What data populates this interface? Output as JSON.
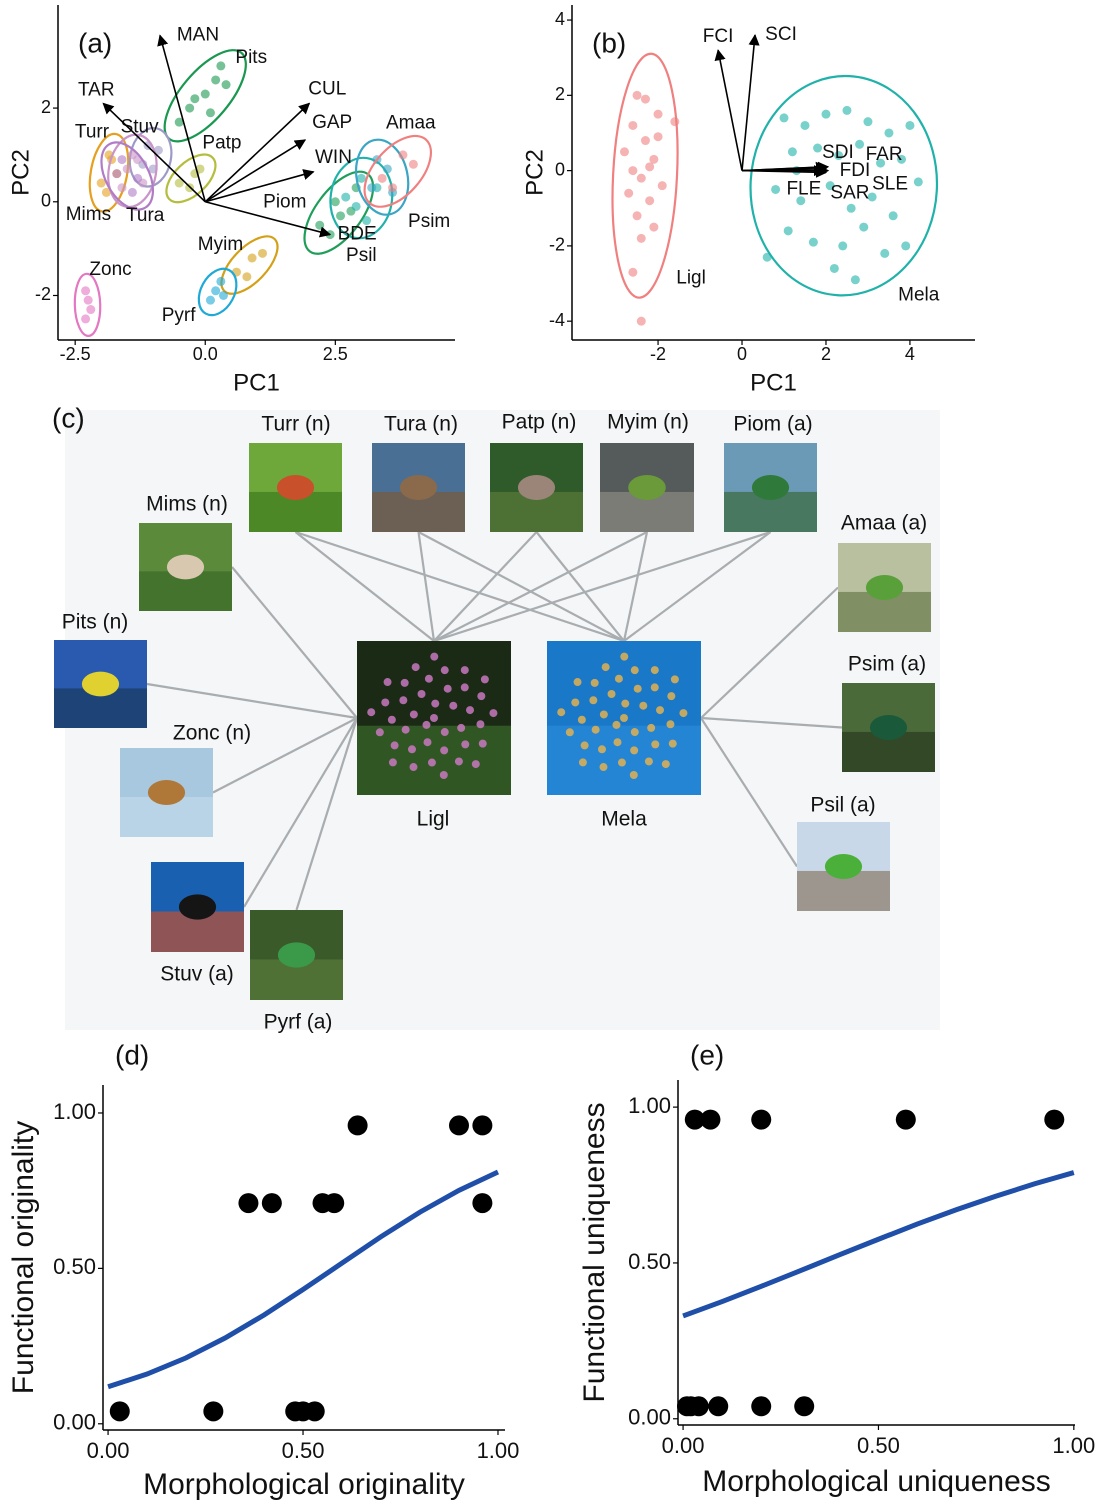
{
  "chart_data": [
    {
      "type": "biplot",
      "panel_label": "(a)",
      "xlabel": "PC1",
      "ylabel": "PC2",
      "xlim": [
        -2.83,
        4.8
      ],
      "ylim": [
        -2.95,
        4.2
      ],
      "xticks": [
        -2.5,
        {
          "value": 0,
          "label": "0.0"
        },
        2.5
      ],
      "yticks": [
        -2,
        0,
        2
      ],
      "groups": [
        {
          "name": "Pits",
          "color": "#1a9850",
          "x": [
            -0.5,
            -0.3,
            0,
            0.2,
            0.4,
            0.1,
            -0.2,
            0.3
          ],
          "y": [
            1.7,
            2.0,
            2.3,
            2.6,
            2.5,
            1.9,
            2.2,
            2.9
          ]
        },
        {
          "name": "Turr",
          "color": "#e6a020",
          "x": [
            -2.0,
            -1.8,
            -1.7,
            -1.9,
            -1.85
          ],
          "y": [
            0.4,
            0.9,
            0.6,
            0.2,
            1.0
          ]
        },
        {
          "name": "Stuv",
          "color": "#9e9ac8",
          "x": [
            -1.2,
            -0.9,
            -1.0,
            -1.1
          ],
          "y": [
            0.8,
            1.1,
            0.7,
            1.2
          ]
        },
        {
          "name": "Mims",
          "color": "#c994c7",
          "x": [
            -1.6,
            -1.3,
            -1.5,
            -1.2,
            -1.4
          ],
          "y": [
            0.3,
            0.9,
            0.7,
            0.4,
            1.0
          ]
        },
        {
          "name": "Tura",
          "color": "#b07cc6",
          "x": [
            -1.7,
            -1.4,
            -1.6,
            -1.3
          ],
          "y": [
            0.6,
            0.2,
            0.9,
            0.5
          ]
        },
        {
          "name": "Patp",
          "color": "#b5bd3d",
          "x": [
            -0.5,
            -0.2,
            -0.3,
            -0.1
          ],
          "y": [
            0.4,
            0.6,
            0.3,
            0.7
          ]
        },
        {
          "name": "Piom",
          "color": "#1f9e5a",
          "x": [
            2.2,
            2.5,
            2.8,
            2.4,
            2.9,
            2.6
          ],
          "y": [
            -0.5,
            0.0,
            -0.2,
            -0.7,
            0.3,
            -0.3
          ]
        },
        {
          "name": "Psil",
          "color": "#20b2aa",
          "x": [
            2.7,
            3.1,
            3.3,
            2.9,
            3.0
          ],
          "y": [
            0.1,
            -0.4,
            0.3,
            -0.1,
            0.5
          ]
        },
        {
          "name": "Psim",
          "color": "#3aa5c5",
          "x": [
            3.2,
            3.5,
            3.6,
            3.3
          ],
          "y": [
            0.3,
            0.7,
            0.2,
            0.9
          ]
        },
        {
          "name": "Amaa",
          "color": "#f08080",
          "x": [
            3.4,
            3.8,
            4.0,
            3.6
          ],
          "y": [
            0.5,
            1.0,
            0.8,
            0.3
          ]
        },
        {
          "name": "Myim",
          "color": "#d4a017",
          "x": [
            0.6,
            0.9,
            1.1,
            0.8
          ],
          "y": [
            -1.5,
            -1.2,
            -1.1,
            -1.6
          ]
        },
        {
          "name": "Pyrf",
          "color": "#1fa9d6",
          "x": [
            0.1,
            0.3,
            0.2,
            0.35
          ],
          "y": [
            -2.1,
            -1.7,
            -1.9,
            -2.0
          ]
        },
        {
          "name": "Zonc",
          "color": "#e377c2",
          "x": [
            -2.3,
            -2.2,
            -2.25,
            -2.3
          ],
          "y": [
            -1.9,
            -2.3,
            -2.1,
            -2.5
          ]
        }
      ],
      "loadings": [
        {
          "name": "MAN",
          "x": -0.87,
          "y": 3.55
        },
        {
          "name": "TAR",
          "x": -1.96,
          "y": 2.1
        },
        {
          "name": "CUL",
          "x": 2.0,
          "y": 2.1
        },
        {
          "name": "GAP",
          "x": 1.92,
          "y": 1.32
        },
        {
          "name": "WIN",
          "x": 2.08,
          "y": 0.64
        },
        {
          "name": "BDE",
          "x": 2.4,
          "y": -0.7
        }
      ]
    },
    {
      "type": "biplot",
      "panel_label": "(b)",
      "xlabel": "PC1",
      "ylabel": "PC2",
      "xlim": [
        -4.05,
        5.55
      ],
      "ylim": [
        -4.5,
        4.4
      ],
      "xticks": [
        -2,
        0,
        2,
        4
      ],
      "yticks": [
        -4,
        -2,
        0,
        2,
        4
      ],
      "groups": [
        {
          "name": "Ligl",
          "color": "#f08080",
          "x": [
            -2.6,
            -2.3,
            -2.0,
            -2.4,
            -2.1,
            -2.8,
            -2.2,
            -1.9,
            -2.5,
            -2.3,
            -2.0,
            -2.7,
            -2.4,
            -2.1,
            -1.6,
            -2.6,
            -2.2,
            -2.4,
            -2.6,
            -2.5
          ],
          "y": [
            1.2,
            0.8,
            1.5,
            -0.2,
            0.3,
            0.5,
            -0.8,
            -0.4,
            -1.2,
            1.9,
            0.9,
            -0.6,
            -1.8,
            -1.5,
            1.3,
            0.0,
            0.1,
            -4.0,
            -2.7,
            2.0
          ]
        },
        {
          "name": "Mela",
          "color": "#20b2aa",
          "x": [
            1.0,
            1.5,
            2.0,
            2.5,
            3.0,
            3.5,
            4.0,
            1.2,
            1.8,
            2.3,
            2.8,
            3.3,
            3.8,
            4.2,
            0.8,
            1.4,
            2.1,
            2.6,
            3.1,
            3.6,
            1.1,
            1.7,
            2.4,
            2.9,
            3.4,
            2.2,
            2.7,
            1.3,
            3.9,
            0.6
          ],
          "y": [
            1.4,
            1.2,
            1.5,
            1.6,
            1.3,
            1.0,
            1.2,
            0.5,
            0.6,
            0.4,
            0.7,
            0.2,
            0.3,
            -0.3,
            -0.5,
            -0.8,
            -0.4,
            -1.0,
            -0.7,
            -1.2,
            -1.6,
            -1.9,
            -2.0,
            -1.5,
            -2.2,
            -2.6,
            -2.9,
            0.0,
            -2.0,
            -2.3
          ]
        }
      ],
      "loadings": [
        {
          "name": "FCI",
          "x": -0.57,
          "y": 3.2
        },
        {
          "name": "SCI",
          "x": 0.31,
          "y": 3.6
        },
        {
          "name": "SDI",
          "x": 2.0,
          "y": 0.1
        },
        {
          "name": "FAR",
          "x": 2.05,
          "y": 0.1
        },
        {
          "name": "FDI",
          "x": 2.0,
          "y": 0.05
        },
        {
          "name": "SLE",
          "x": 2.05,
          "y": 0.0
        },
        {
          "name": "FLE",
          "x": 1.95,
          "y": 0.0
        },
        {
          "name": "SAR",
          "x": 2.0,
          "y": -0.05
        }
      ]
    },
    {
      "type": "network",
      "panel_label": "(c)",
      "nodes": [
        "Turr (n)",
        "Tura (n)",
        "Patp (n)",
        "Myim (n)",
        "Piom (a)",
        "Mims (n)",
        "Pits (n)",
        "Zonc (n)",
        "Stuv (a)",
        "Pyrf (a)",
        "Amaa (a)",
        "Psim (a)",
        "Psil (a)"
      ],
      "plants": [
        "Ligl",
        "Mela"
      ],
      "links": [
        [
          0,
          0
        ],
        [
          0,
          1
        ],
        [
          1,
          0
        ],
        [
          1,
          1
        ],
        [
          2,
          0
        ],
        [
          2,
          1
        ],
        [
          3,
          0
        ],
        [
          3,
          1
        ],
        [
          4,
          0
        ],
        [
          4,
          1
        ],
        [
          5,
          0
        ],
        [
          6,
          0
        ],
        [
          7,
          0
        ],
        [
          8,
          0
        ],
        [
          9,
          0
        ],
        [
          10,
          1
        ],
        [
          11,
          1
        ],
        [
          12,
          1
        ]
      ]
    },
    {
      "type": "scatter",
      "panel_label": "(d)",
      "xlabel": "Morphological originality",
      "ylabel": "Functional originality",
      "xlim": [
        -0.013,
        1.018
      ],
      "ylim": [
        -0.02,
        1.09
      ],
      "xticks": [
        {
          "value": 0,
          "label": "0.00"
        },
        {
          "value": 0.5,
          "label": "0.50"
        },
        {
          "value": 1,
          "label": "1.00"
        }
      ],
      "yticks": [
        {
          "value": 0,
          "label": "0.00"
        },
        {
          "value": 0.5,
          "label": "0.50"
        },
        {
          "value": 1,
          "label": "1.00"
        }
      ],
      "color": "#000000",
      "x": [
        0.03,
        0.27,
        0.48,
        0.5,
        0.53,
        0.36,
        0.42,
        0.55,
        0.58,
        0.96,
        0.64,
        0.9,
        0.96
      ],
      "y": [
        0.04,
        0.04,
        0.04,
        0.04,
        0.04,
        0.71,
        0.71,
        0.71,
        0.71,
        0.71,
        0.96,
        0.96,
        0.96
      ],
      "fit": {
        "color": "#1f4fa8",
        "x": [
          0,
          0.1,
          0.2,
          0.3,
          0.4,
          0.5,
          0.6,
          0.7,
          0.8,
          0.9,
          1.0
        ],
        "y": [
          0.119,
          0.16,
          0.212,
          0.276,
          0.35,
          0.432,
          0.517,
          0.602,
          0.681,
          0.751,
          0.81
        ]
      }
    },
    {
      "type": "scatter",
      "panel_label": "(e)",
      "xlabel": "Morphological uniqueness",
      "ylabel": "Functional uniqueness",
      "xlim": [
        -0.013,
        1.003
      ],
      "ylim": [
        -0.02,
        1.087
      ],
      "xticks": [
        {
          "value": 0,
          "label": "0.00"
        },
        {
          "value": 0.5,
          "label": "0.50"
        },
        {
          "value": 1,
          "label": "1.00"
        }
      ],
      "yticks": [
        {
          "value": 0,
          "label": "0.00"
        },
        {
          "value": 0.5,
          "label": "0.50"
        },
        {
          "value": 1,
          "label": "1.00"
        }
      ],
      "color": "#000000",
      "x": [
        0.01,
        0.02,
        0.04,
        0.09,
        0.2,
        0.31,
        0.03,
        0.07,
        0.2,
        0.57,
        0.95
      ],
      "y": [
        0.04,
        0.04,
        0.04,
        0.04,
        0.04,
        0.04,
        0.96,
        0.96,
        0.96,
        0.96,
        0.96
      ],
      "fit": {
        "color": "#1f4fa8",
        "x": [
          0,
          0.1,
          0.2,
          0.3,
          0.4,
          0.5,
          0.6,
          0.7,
          0.8,
          0.9,
          1.0
        ],
        "y": [
          0.33,
          0.376,
          0.425,
          0.475,
          0.526,
          0.576,
          0.625,
          0.671,
          0.714,
          0.754,
          0.79
        ]
      }
    }
  ]
}
